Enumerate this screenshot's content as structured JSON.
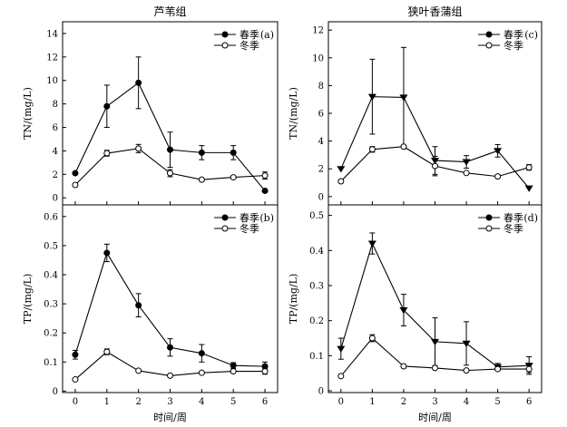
{
  "figure": {
    "col_titles": [
      "芦苇组",
      "狭叶香蒲组"
    ],
    "xlabel": "时间/周",
    "y_labels": [
      "TN/(mg/L)",
      "TP/(mg/L)"
    ]
  },
  "legend": {
    "spring": "春季",
    "winter": "冬季"
  },
  "chart_data": [
    {
      "type": "line",
      "panel": "(a)",
      "title": "芦苇组",
      "xlabel": "",
      "ylabel": "TN/(mg/L)",
      "x": [
        0,
        1,
        2,
        3,
        4,
        5,
        6
      ],
      "xlim": [
        -0.4,
        6.4
      ],
      "ylim": [
        -0.6,
        15
      ],
      "yticks": [
        0,
        2,
        4,
        6,
        8,
        10,
        12,
        14
      ],
      "legend_position": "top-right",
      "series": [
        {
          "name": "春季",
          "marker": "filled-circle",
          "values": [
            2.1,
            7.8,
            9.8,
            4.1,
            3.85,
            3.85,
            0.6
          ],
          "err": [
            0,
            1.8,
            2.2,
            1.5,
            0.6,
            0.6,
            0
          ]
        },
        {
          "name": "冬季",
          "marker": "open-circle",
          "values": [
            1.1,
            3.8,
            4.2,
            2.1,
            1.55,
            1.75,
            1.9
          ],
          "err": [
            0,
            0.25,
            0.35,
            0.3,
            0,
            0.1,
            0.3
          ]
        }
      ]
    },
    {
      "type": "line",
      "panel": "(c)",
      "title": "狭叶香蒲组",
      "xlabel": "",
      "ylabel": "TN/(mg/L)",
      "x": [
        0,
        1,
        2,
        3,
        4,
        5,
        6
      ],
      "xlim": [
        -0.4,
        6.4
      ],
      "ylim": [
        -0.6,
        12.6
      ],
      "yticks": [
        0,
        2,
        4,
        6,
        8,
        10,
        12
      ],
      "legend_position": "top-right",
      "series": [
        {
          "name": "春季",
          "marker": "filled-triangle",
          "values": [
            2.0,
            7.2,
            7.15,
            2.6,
            2.5,
            3.3,
            0.6
          ],
          "err": [
            0,
            2.7,
            3.6,
            1.0,
            0.45,
            0.45,
            0
          ]
        },
        {
          "name": "冬季",
          "marker": "open-circle",
          "values": [
            1.1,
            3.4,
            3.6,
            2.2,
            1.7,
            1.45,
            2.1
          ],
          "err": [
            0,
            0.2,
            0,
            0.7,
            0,
            0,
            0.2
          ]
        }
      ]
    },
    {
      "type": "line",
      "panel": "(b)",
      "title": "",
      "xlabel": "时间/周",
      "ylabel": "TP/(mg/L)",
      "x": [
        0,
        1,
        2,
        3,
        4,
        5,
        6
      ],
      "xlim": [
        -0.4,
        6.4
      ],
      "ylim": [
        -0.005,
        0.64
      ],
      "yticks": [
        0,
        0.1,
        0.2,
        0.3,
        0.4,
        0.5,
        0.6
      ],
      "legend_position": "top-right",
      "series": [
        {
          "name": "春季",
          "marker": "filled-circle",
          "values": [
            0.125,
            0.475,
            0.295,
            0.15,
            0.13,
            0.088,
            0.085
          ],
          "err": [
            0.015,
            0.03,
            0.04,
            0.03,
            0.03,
            0.01,
            0.015
          ]
        },
        {
          "name": "冬季",
          "marker": "open-circle",
          "values": [
            0.04,
            0.135,
            0.07,
            0.053,
            0.063,
            0.068,
            0.068
          ],
          "err": [
            0,
            0.01,
            0,
            0,
            0,
            0,
            0.01
          ]
        }
      ]
    },
    {
      "type": "line",
      "panel": "(d)",
      "title": "",
      "xlabel": "时间/周",
      "ylabel": "TP/(mg/L)",
      "x": [
        0,
        1,
        2,
        3,
        4,
        5,
        6
      ],
      "xlim": [
        -0.4,
        6.4
      ],
      "ylim": [
        -0.005,
        0.53
      ],
      "yticks": [
        0,
        0.1,
        0.2,
        0.3,
        0.4,
        0.5
      ],
      "legend_position": "top-right",
      "series": [
        {
          "name": "春季",
          "marker": "filled-triangle",
          "values": [
            0.12,
            0.42,
            0.23,
            0.14,
            0.135,
            0.068,
            0.072
          ],
          "err": [
            0.03,
            0.03,
            0.045,
            0.068,
            0.062,
            0.01,
            0.025
          ]
        },
        {
          "name": "冬季",
          "marker": "open-circle",
          "values": [
            0.042,
            0.15,
            0.07,
            0.065,
            0.058,
            0.062,
            0.062
          ],
          "err": [
            0,
            0.01,
            0,
            0,
            0,
            0,
            0.01
          ]
        }
      ]
    }
  ]
}
